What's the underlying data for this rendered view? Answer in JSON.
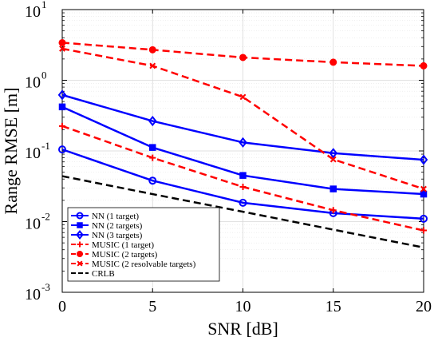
{
  "chart_data": {
    "type": "line",
    "xlabel": "SNR [dB]",
    "ylabel": "Range RMSE [m]",
    "xlim": [
      0,
      20
    ],
    "ylim": [
      0.001,
      10
    ],
    "yscale": "log",
    "grid": true,
    "legend_position": "bottom-left",
    "x": [
      0,
      5,
      10,
      15,
      20
    ],
    "x_ticks": [
      "0",
      "5",
      "10",
      "15",
      "20"
    ],
    "y_ticks": [
      {
        "base": "10",
        "exp": "-3",
        "value": 0.001
      },
      {
        "base": "10",
        "exp": "-2",
        "value": 0.01
      },
      {
        "base": "10",
        "exp": "-1",
        "value": 0.1
      },
      {
        "base": "10",
        "exp": "0",
        "value": 1
      },
      {
        "base": "10",
        "exp": "1",
        "value": 10
      }
    ],
    "series": [
      {
        "name": "NN (1 target)",
        "color": "#0000ff",
        "dash": "solid",
        "marker": "circle-open",
        "values": [
          0.105,
          0.038,
          0.0185,
          0.0132,
          0.011
        ]
      },
      {
        "name": "NN (2 targets)",
        "color": "#0000ff",
        "dash": "solid",
        "marker": "square-open",
        "values": [
          0.42,
          0.112,
          0.045,
          0.029,
          0.0245
        ]
      },
      {
        "name": "NN (3 targets)",
        "color": "#0000ff",
        "dash": "solid",
        "marker": "diamond-open",
        "values": [
          0.62,
          0.265,
          0.132,
          0.093,
          0.075
        ]
      },
      {
        "name": "MUSIC (1 target)",
        "color": "#ff0000",
        "dash": "dashed",
        "marker": "plus",
        "values": [
          0.225,
          0.08,
          0.031,
          0.0145,
          0.0075
        ]
      },
      {
        "name": "MUSIC (2 targets)",
        "color": "#ff0000",
        "dash": "dashed",
        "marker": "circle-filled",
        "values": [
          3.4,
          2.7,
          2.1,
          1.8,
          1.6
        ]
      },
      {
        "name": "MUSIC (2 resolvable targets)",
        "color": "#ff0000",
        "dash": "dashed",
        "marker": "x",
        "values": [
          2.8,
          1.6,
          0.58,
          0.076,
          0.029
        ]
      },
      {
        "name": "CRLB",
        "color": "#000000",
        "dash": "dashed",
        "marker": "none",
        "values": [
          0.044,
          0.0245,
          0.0138,
          0.0077,
          0.0043
        ]
      }
    ]
  }
}
